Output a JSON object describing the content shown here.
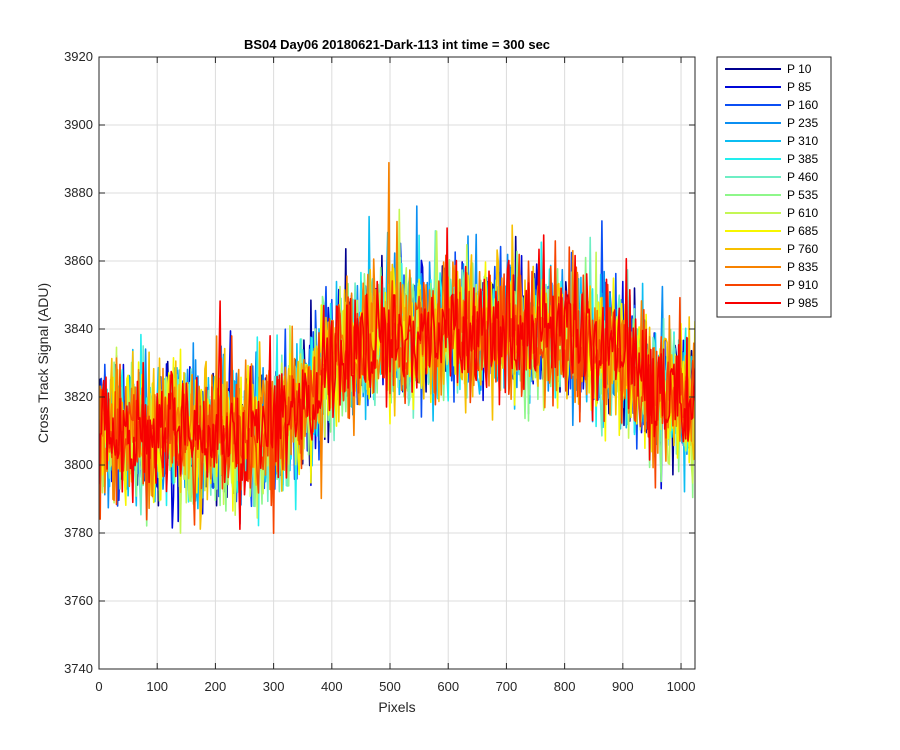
{
  "chart_data": {
    "type": "line",
    "title": "BS04 Day06 20180621-Dark-113 int time = 300 sec",
    "xlabel": "Pixels",
    "ylabel": "Cross Track Signal (ADU)",
    "xlim": [
      0,
      1024
    ],
    "ylim": [
      3740,
      3920
    ],
    "xticks": [
      0,
      100,
      200,
      300,
      400,
      500,
      600,
      700,
      800,
      900,
      1000
    ],
    "yticks": [
      3740,
      3760,
      3780,
      3800,
      3820,
      3840,
      3860,
      3880,
      3900,
      3920
    ],
    "grid": true,
    "legend_position": "outside-top-right",
    "noise_amplitude_adu": 22,
    "baseline_profile": {
      "x": [
        0,
        100,
        200,
        300,
        350,
        400,
        450,
        500,
        600,
        700,
        800,
        850,
        900,
        950,
        1024
      ],
      "y": [
        3810,
        3810,
        3809,
        3810,
        3818,
        3830,
        3836,
        3838,
        3840,
        3840,
        3839,
        3836,
        3832,
        3822,
        3818
      ]
    },
    "series": [
      {
        "name": "P 10",
        "color": "#00008f"
      },
      {
        "name": "P 85",
        "color": "#0008d8"
      },
      {
        "name": "P 160",
        "color": "#0b4ff4"
      },
      {
        "name": "P 235",
        "color": "#0b8ff2"
      },
      {
        "name": "P 310",
        "color": "#0bbdf2"
      },
      {
        "name": "P 385",
        "color": "#22eeee"
      },
      {
        "name": "P 460",
        "color": "#6eeec4"
      },
      {
        "name": "P 535",
        "color": "#8ef78a"
      },
      {
        "name": "P 610",
        "color": "#c4f755"
      },
      {
        "name": "P 685",
        "color": "#f7f700"
      },
      {
        "name": "P 760",
        "color": "#f7c000"
      },
      {
        "name": "P 835",
        "color": "#f78200"
      },
      {
        "name": "P 910",
        "color": "#f74400"
      },
      {
        "name": "P 985",
        "color": "#f70000"
      }
    ]
  }
}
